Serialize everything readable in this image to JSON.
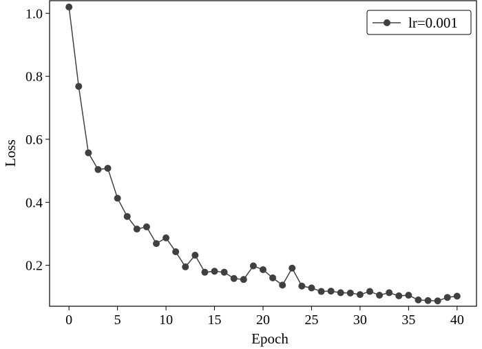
{
  "chart_data": {
    "type": "line",
    "title": "",
    "xlabel": "Epoch",
    "ylabel": "Loss",
    "xlim": [
      -2,
      42
    ],
    "ylim": [
      0.07,
      1.04
    ],
    "xticks": [
      0,
      5,
      10,
      15,
      20,
      25,
      30,
      35,
      40
    ],
    "yticks": [
      0.2,
      0.4,
      0.6,
      0.8,
      1.0
    ],
    "xtick_labels": [
      "0",
      "5",
      "10",
      "15",
      "20",
      "25",
      "30",
      "35",
      "40"
    ],
    "ytick_labels": [
      "0.2",
      "0.4",
      "0.6",
      "0.8",
      "1.0"
    ],
    "grid": false,
    "legend_position": "top-right",
    "series": [
      {
        "name": "lr=0.001",
        "color": "#404040",
        "marker": "circle",
        "x": [
          0,
          1,
          2,
          3,
          4,
          5,
          6,
          7,
          8,
          9,
          10,
          11,
          12,
          13,
          14,
          15,
          16,
          17,
          18,
          19,
          20,
          21,
          22,
          23,
          24,
          25,
          26,
          27,
          28,
          29,
          30,
          31,
          32,
          33,
          34,
          35,
          36,
          37,
          38,
          39,
          40
        ],
        "y": [
          1.02,
          0.768,
          0.557,
          0.504,
          0.508,
          0.413,
          0.355,
          0.315,
          0.322,
          0.269,
          0.287,
          0.243,
          0.195,
          0.232,
          0.178,
          0.181,
          0.178,
          0.158,
          0.155,
          0.198,
          0.186,
          0.16,
          0.137,
          0.191,
          0.134,
          0.128,
          0.117,
          0.118,
          0.113,
          0.112,
          0.107,
          0.117,
          0.105,
          0.113,
          0.103,
          0.105,
          0.09,
          0.088,
          0.087,
          0.098,
          0.102
        ]
      }
    ]
  }
}
